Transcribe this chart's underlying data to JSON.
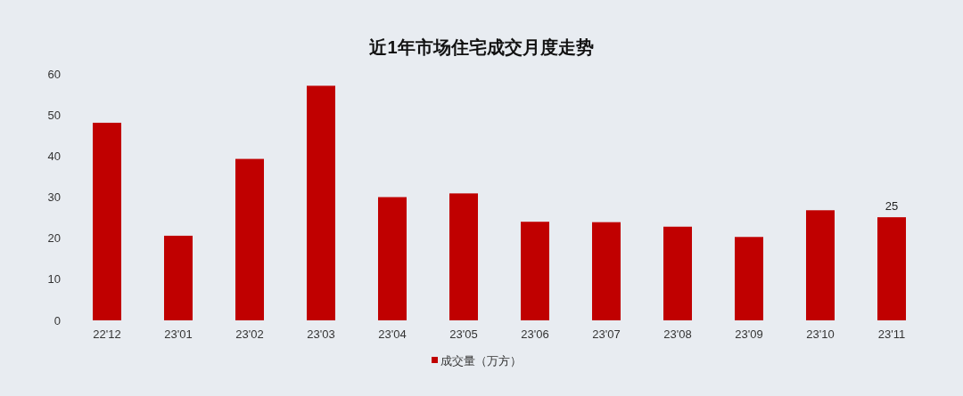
{
  "chart_data": {
    "type": "bar",
    "title": "近1年市场住宅成交月度走势",
    "categories": [
      "22'12",
      "23'01",
      "23'02",
      "23'03",
      "23'04",
      "23'05",
      "23'06",
      "23'07",
      "23'08",
      "23'09",
      "23'10",
      "23'11"
    ],
    "series": [
      {
        "name": "成交量（万方）",
        "color": "#c00000",
        "values": [
          48.1,
          20.6,
          39.3,
          57.1,
          30,
          30.9,
          24,
          23.9,
          22.8,
          20.3,
          26.8,
          25.1
        ],
        "value_labels": [
          null,
          null,
          null,
          null,
          null,
          null,
          null,
          null,
          null,
          null,
          null,
          "25"
        ]
      }
    ],
    "ylim": [
      0,
      60
    ],
    "yticks": [
      0,
      10,
      20,
      30,
      40,
      50,
      60
    ],
    "grid": false,
    "legend": "bottom"
  }
}
